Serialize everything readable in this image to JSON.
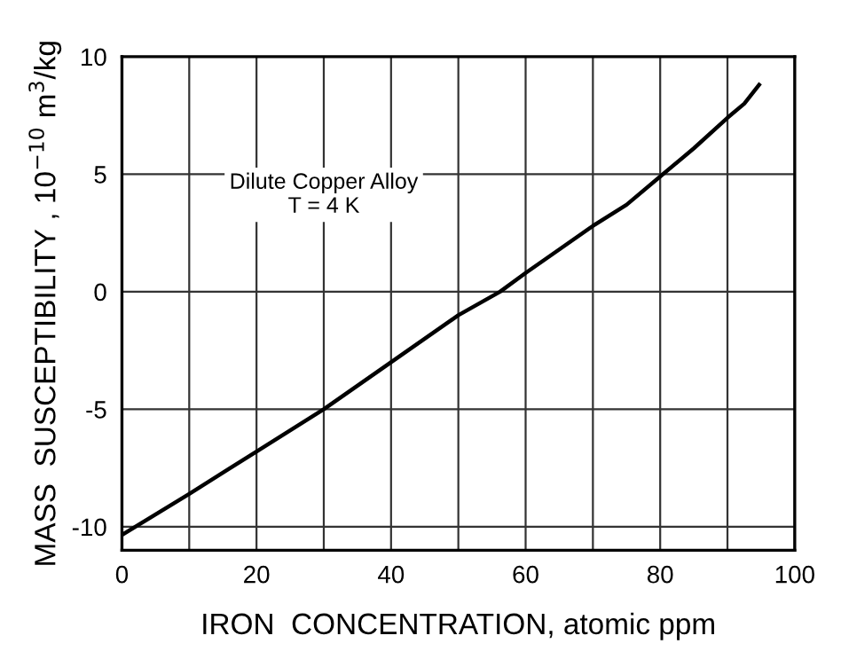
{
  "chart_data": {
    "type": "line",
    "xlabel": "IRON  CONCENTRATION, atomic ppm",
    "ylabel": "MASS  SUSCEPTIBILITY , 10$^{−10}$ m$^{3}$/kg",
    "annotations": [
      "Dilute Copper Alloy\nT = 4 K"
    ],
    "series": [
      {
        "color": "#000000",
        "x": [
          0,
          10,
          20,
          30,
          40,
          50,
          56.2,
          60,
          65,
          70,
          75,
          80,
          85,
          90,
          92.5,
          94.7
        ],
        "values": [
          -10.35,
          -8.6,
          -6.8,
          -5.0,
          -3.0,
          -1.0,
          0,
          0.8,
          1.8,
          2.8,
          3.7,
          4.9,
          6.1,
          7.4,
          8.0,
          8.8
        ]
      }
    ],
    "xlim": [
      0,
      100
    ],
    "ylim": [
      -11,
      10
    ],
    "xticks": [
      0,
      {
        "value": 10,
        "label": null
      },
      20,
      {
        "value": 30,
        "label": null
      },
      40,
      {
        "value": 50,
        "label": null
      },
      60,
      {
        "value": 70,
        "label": null
      },
      80,
      {
        "value": 90,
        "label": null
      },
      100
    ],
    "yticks": [
      -10,
      -5,
      0,
      5,
      10
    ],
    "grid": true,
    "marker": "none",
    "line_style": "solid"
  }
}
